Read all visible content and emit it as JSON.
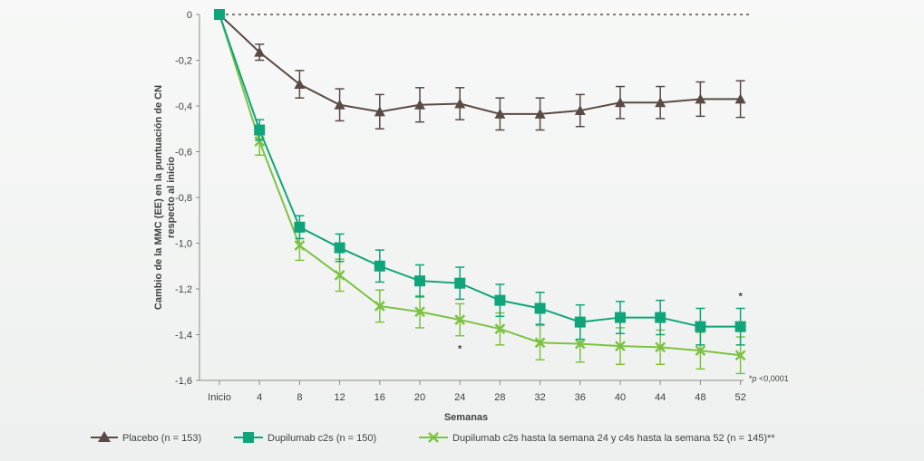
{
  "chart_data": {
    "type": "line",
    "xlabel": "Semanas",
    "ylabel_line1": "Cambio de la MMC (EE) en la puntuación de CN",
    "ylabel_line2": "respecto al inicio",
    "ylim": [
      -1.6,
      0
    ],
    "yticks": [
      0,
      -0.2,
      -0.4,
      -0.6,
      -0.8,
      -1.0,
      -1.2,
      -1.4,
      -1.6
    ],
    "ytick_labels": [
      "0",
      "-0,2",
      "-0,4",
      "-0,6",
      "-0,8",
      "-1,0",
      "-1,2",
      "-1,4",
      "-1,6"
    ],
    "x": [
      0,
      4,
      8,
      12,
      16,
      20,
      24,
      28,
      32,
      36,
      40,
      44,
      48,
      52
    ],
    "x_labels": [
      "Inicio",
      "4",
      "8",
      "12",
      "16",
      "20",
      "24",
      "28",
      "32",
      "36",
      "40",
      "44",
      "48",
      "52"
    ],
    "reference_line": 0,
    "series": [
      {
        "name": "Placebo (n = 153)",
        "color": "#5a4a45",
        "marker": "triangle",
        "values": [
          0,
          -0.165,
          -0.305,
          -0.395,
          -0.425,
          -0.395,
          -0.39,
          -0.435,
          -0.435,
          -0.42,
          -0.385,
          -0.385,
          -0.37,
          -0.37
        ],
        "err": [
          0,
          0.035,
          0.06,
          0.07,
          0.075,
          0.075,
          0.07,
          0.07,
          0.07,
          0.07,
          0.07,
          0.07,
          0.075,
          0.08
        ]
      },
      {
        "name": "Dupilumab c2s (n = 150)",
        "color": "#0fa47a",
        "marker": "square",
        "values": [
          0,
          -0.505,
          -0.93,
          -1.02,
          -1.1,
          -1.165,
          -1.175,
          -1.25,
          -1.285,
          -1.345,
          -1.325,
          -1.325,
          -1.365,
          -1.365
        ],
        "err": [
          0,
          0.045,
          0.05,
          0.06,
          0.07,
          0.07,
          0.07,
          0.07,
          0.07,
          0.075,
          0.07,
          0.075,
          0.08,
          0.08
        ]
      },
      {
        "name": "Dupilumab c2s hasta la semana 24 y c4s hasta la semana 52 (n = 145)**",
        "color": "#7cc242",
        "marker": "x",
        "values": [
          0,
          -0.555,
          -1.01,
          -1.14,
          -1.275,
          -1.3,
          -1.335,
          -1.375,
          -1.435,
          -1.44,
          -1.45,
          -1.455,
          -1.47,
          -1.49
        ],
        "err": [
          0,
          0.06,
          0.065,
          0.07,
          0.07,
          0.07,
          0.07,
          0.07,
          0.075,
          0.08,
          0.08,
          0.075,
          0.08,
          0.08
        ]
      }
    ],
    "annotations": [
      {
        "text": "*",
        "x": 24,
        "y": -1.46
      },
      {
        "text": "*",
        "x": 52,
        "y": -1.23
      }
    ],
    "footnote_marker": "*",
    "footnote_p": "p",
    "footnote_rest": " <0,0001",
    "grid": false,
    "legend_position": "bottom"
  }
}
